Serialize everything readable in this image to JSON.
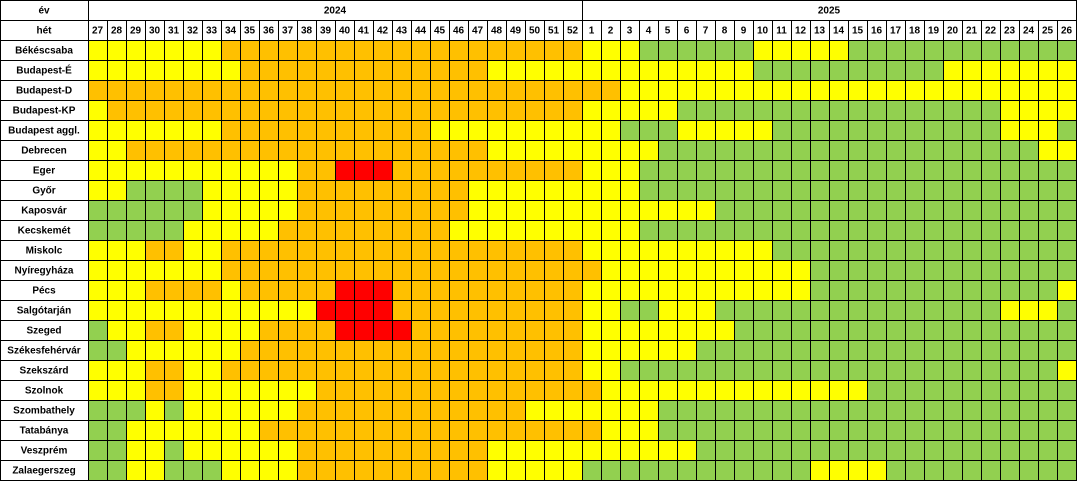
{
  "header": {
    "year_label": "év",
    "week_label": "hét"
  },
  "palette": {
    "Y": "#ffff00",
    "O": "#ffc000",
    "R": "#ff0000",
    "G": "#92d050"
  },
  "years": [
    {
      "year": "2024",
      "weeks": [
        27,
        28,
        29,
        30,
        31,
        32,
        33,
        34,
        35,
        36,
        37,
        38,
        39,
        40,
        41,
        42,
        43,
        44,
        45,
        46,
        47,
        48,
        49,
        50,
        51,
        52
      ]
    },
    {
      "year": "2025",
      "weeks": [
        1,
        2,
        3,
        4,
        5,
        6,
        7,
        8,
        9,
        10,
        11,
        12,
        13,
        14,
        15,
        16,
        17,
        18,
        19,
        20,
        21,
        22,
        23,
        24,
        25,
        26
      ]
    }
  ],
  "rows": [
    {
      "label": "Békéscsaba",
      "cells": "YYYYYYYOOOOOOOOOOOOOOOOOOOYYYGGGGGGYYYYYGGGGGGGGGGGG"
    },
    {
      "label": "Budapest-É",
      "cells": "YYYYYYYYOOOOOOOOOOOOOYYYYYYYYYYYYYYGGGGGGGGGGYYYYYYY"
    },
    {
      "label": "Budapest-D",
      "cells": "OOOOOOOOOOOOOOOOOOOOOOOOOOOOYYYYYYYYYYYYYYYYYYYYYYYY"
    },
    {
      "label": "Budapest-KP",
      "cells": "YOOOOOOOOOOOOOOOOOOOOOOOOOYYYYYGGGGGGGGGGGGGGGGGYYYY"
    },
    {
      "label": "Budapest aggl.",
      "cells": "YYYYYYYOOOOOOOOOOOYYYYYYYYYYGGGYYYYYGGGGGGGGGGGGYYYG"
    },
    {
      "label": "Debrecen",
      "cells": "YYOOOOOOOOOOOOOOOOOOOYYYYYYYYYGGGGGGGGGGGGGGGGGGGGYY"
    },
    {
      "label": "Eger",
      "cells": "YYYYYYYYYYYOORRROOOOOOOOOOYYYGGGGGGGGGGGGGGGGGGGGGGG"
    },
    {
      "label": "Győr",
      "cells": "YYGGGGYYYYYOOOOOOOOOYYYYYYYYYGGGGGGGGGGGGGGGGGGGGGGG"
    },
    {
      "label": "Kaposvár",
      "cells": "GGGGGGYYYYYOOOOOOOOOYYYYYYYYYYYYYGGGGGGGGGGGGGGGGGGG"
    },
    {
      "label": "Kecskemét",
      "cells": "GGGGGYYYYYOOOOOOOOOYYYYYYYYYYGGGGGGGGGGGGGGGGGGGGGGG"
    },
    {
      "label": "Miskolc",
      "cells": "YYYOOYYOOOOOOOOOOOOOOOOOOOYYYYYYYYYYGGGGGGGGGGGGGGGG"
    },
    {
      "label": "Nyíregyháza",
      "cells": "YYYYYYYOOOOOOOOOOOOOOOOOOOOYYYYYYYYYYYGGGGGGGGGGGGGG"
    },
    {
      "label": "Pécs",
      "cells": "YYYOOOOYOOOOORRROOOOOOOOOOYYYYYYYYYYYYGGGGGGGGGGGGGY"
    },
    {
      "label": "Salgótarján",
      "cells": "YYYYYYYYYYYYRRRROOOOOOOOOOYYGGYYYGGGGGGGGGGGGGGGYYYG"
    },
    {
      "label": "Szeged",
      "cells": "GYYOOYYYYOOOORRRROOOOOOOOOYYYYYYYYGGGGGGGGGGGGGGGGGG"
    },
    {
      "label": "Székesfehérvár",
      "cells": "GGYYYYYYOOOOOOOOOOOOOOOOOOYYYYYYGGGGGGGGGGGGGGGGGGGG"
    },
    {
      "label": "Szekszárd",
      "cells": "YYYOOYYOOOOOOOOOOOOOOOOOOOYYGGGGGGGGGGGGGGGGGGGGGGGY"
    },
    {
      "label": "Szolnok",
      "cells": "YYYOOYYYYYYYOOOOOOOOOOOOOOOYYYYYYYYYYYYYYGGGGGGGGGGG"
    },
    {
      "label": "Szombathely",
      "cells": "GGGYGYYYYYYOOOOOOOOOOOOYYYYYYYGGGGGGGGGGGGGGGGGGGGGG"
    },
    {
      "label": "Tatabánya",
      "cells": "GGYYYYYYYOOOOOOOOOOOOOOOOOOYYYGGGGGGGGGGGGGGGGGGGGGG"
    },
    {
      "label": "Veszprém",
      "cells": "GGYYGYYYYYYOOOOOOOOOOYYYYYYYYYYYGGGGGGGGGGGGGGGGGGGG"
    },
    {
      "label": "Zalaegerszeg",
      "cells": "GGYYGGGYYYYOOOOOOOOOOYYYYYGGGGGGGGGGGGYYYYGGGGGGGGGG"
    }
  ]
}
